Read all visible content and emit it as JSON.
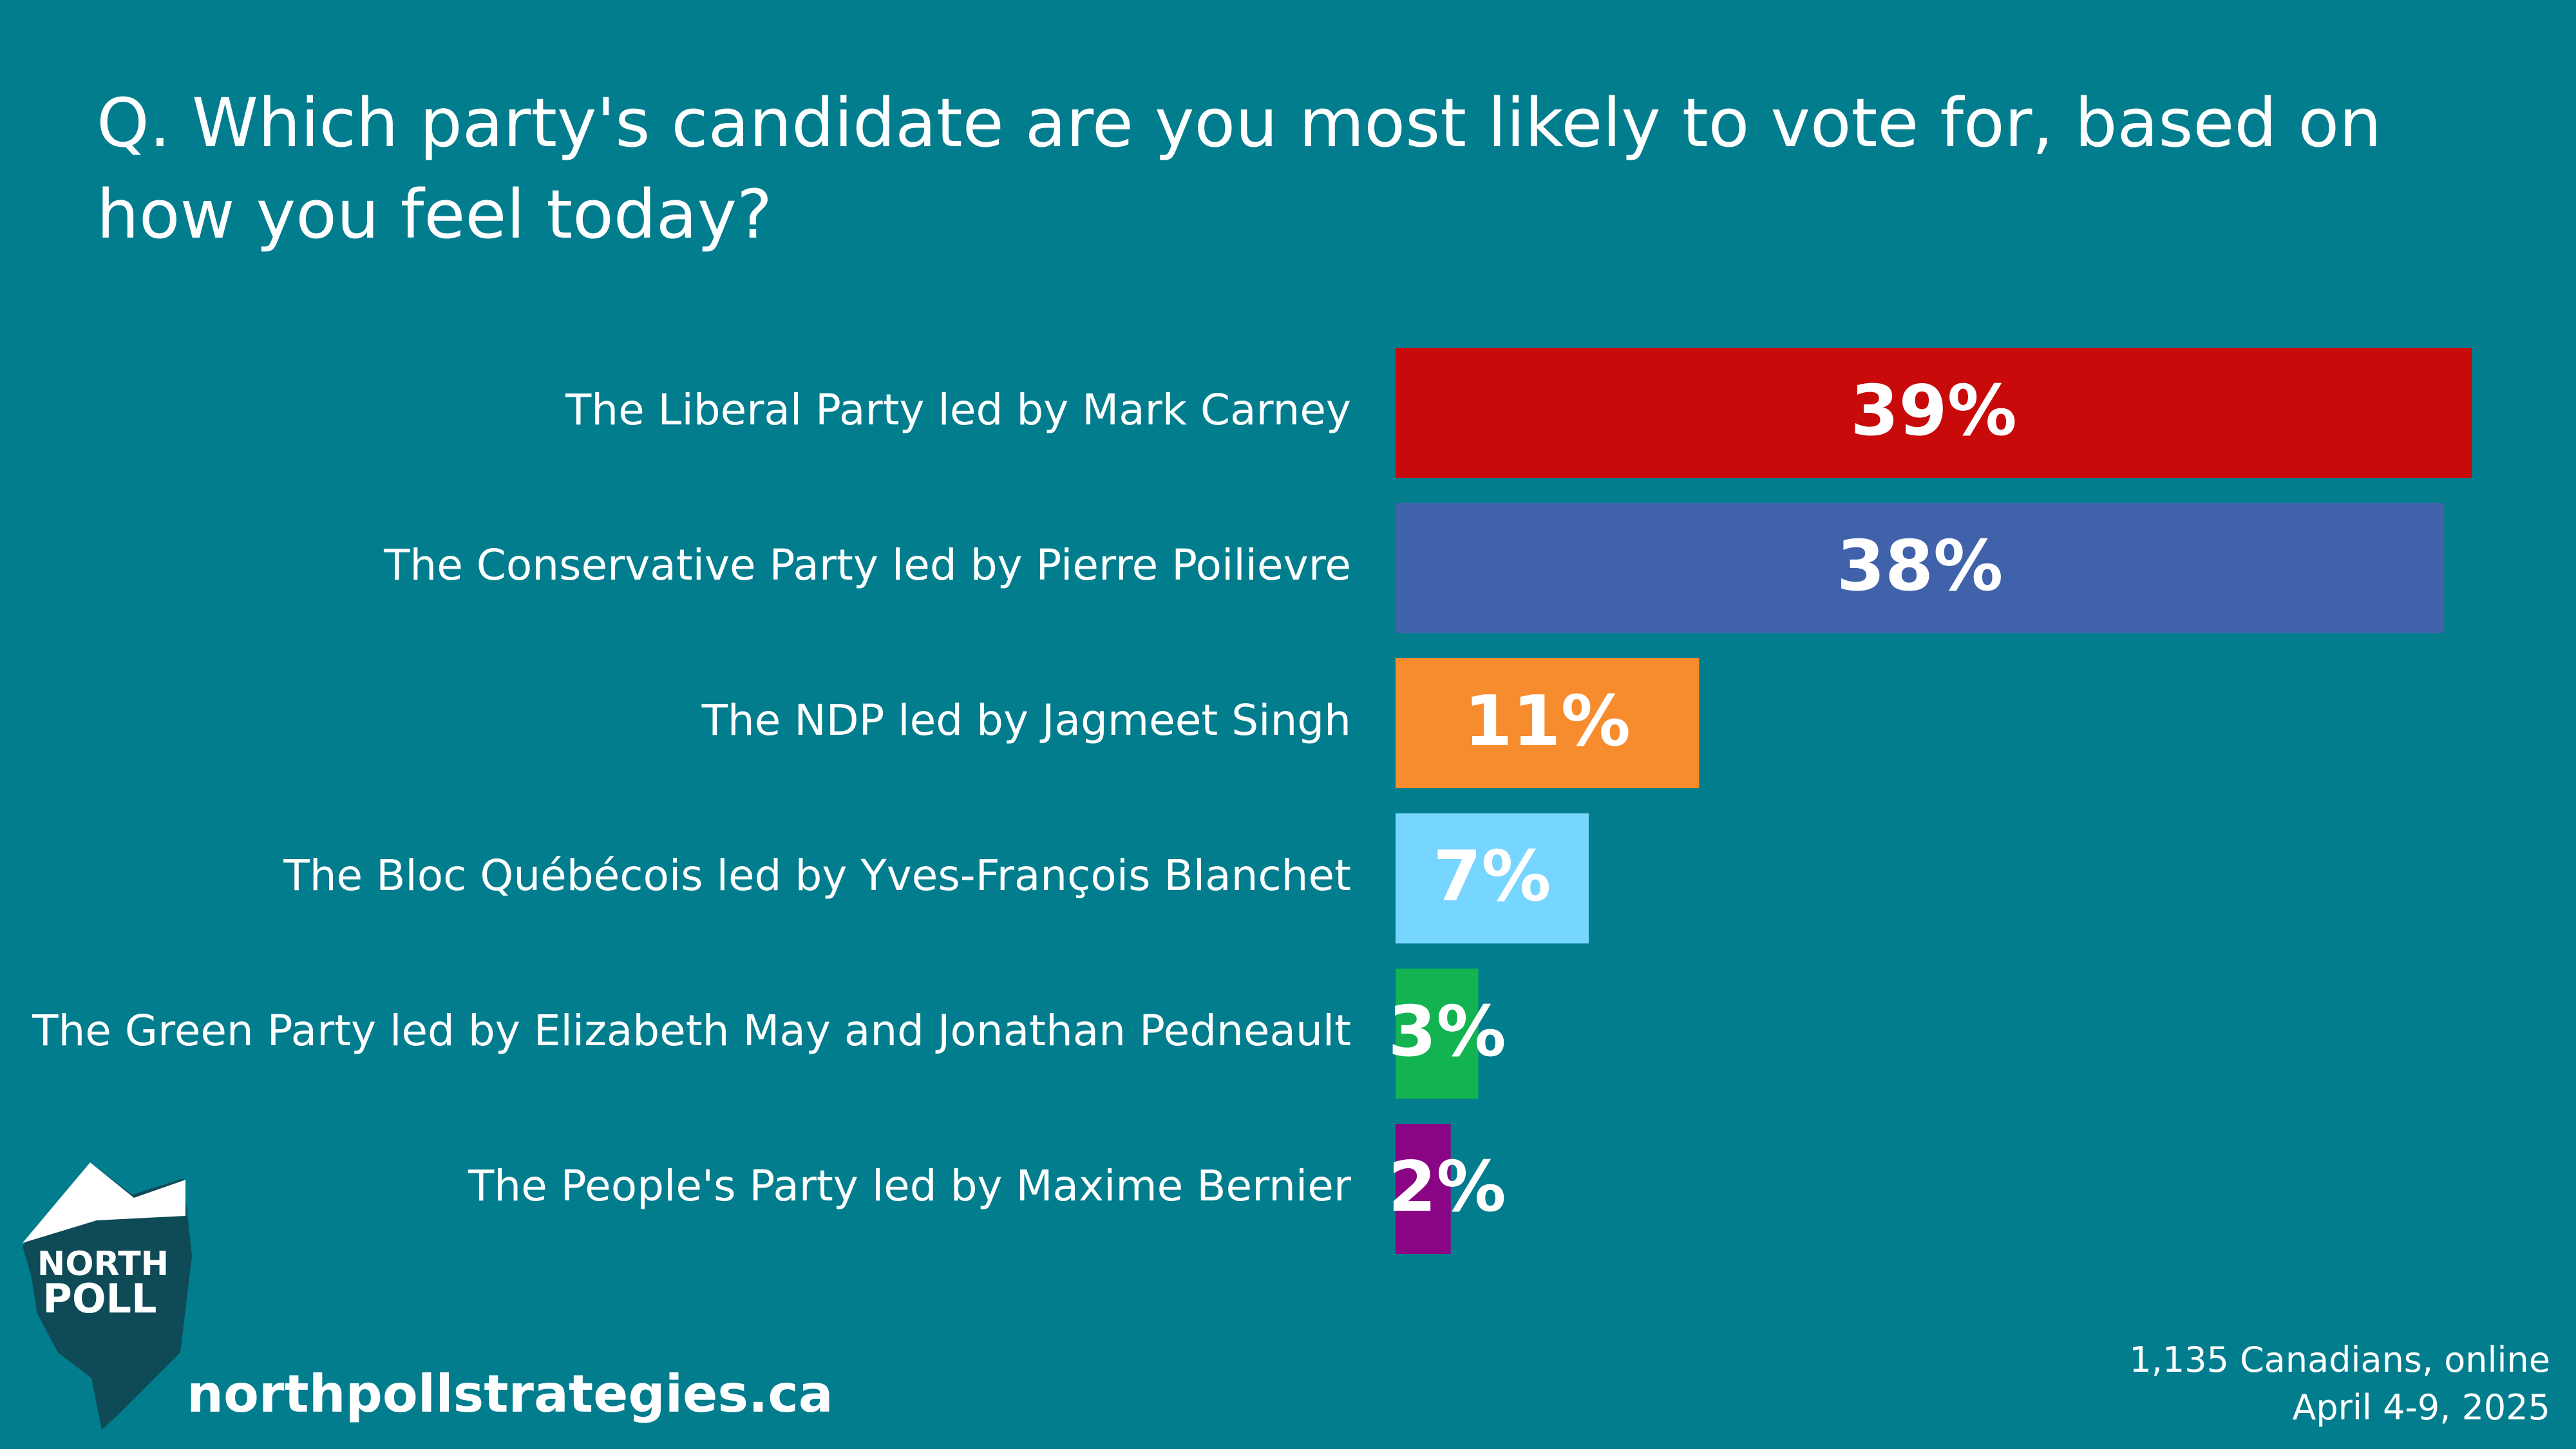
{
  "question": "Q. Which party's candidate are you most likely to vote for, based on how you feel today?",
  "chart_data": {
    "type": "bar",
    "orientation": "horizontal",
    "categories": [
      "The Liberal Party led by Mark Carney",
      "The Conservative Party led by Pierre Poilievre",
      "The NDP led by Jagmeet Singh",
      "The Bloc Québécois led by Yves-François Blanchet",
      "The Green Party led by Elizabeth May and Jonathan Pedneault",
      "The People's Party led by Maxime Bernier"
    ],
    "values": [
      39,
      38,
      11,
      7,
      3,
      2
    ],
    "value_labels": [
      "39%",
      "38%",
      "11%",
      "7%",
      "3%",
      "2%"
    ],
    "colors": [
      "#c80a0a",
      "#4062ab",
      "#f68c2e",
      "#76d6ff",
      "#14b352",
      "#8a0584"
    ],
    "unit": "%",
    "grid": false,
    "legend": "none"
  },
  "logo": {
    "line1": "NORTH",
    "line2": "POLL"
  },
  "website": "northpollstrategies.ca",
  "footnote": {
    "sample": "1,135 Canadians, online",
    "dates": "April 4-9, 2025"
  }
}
